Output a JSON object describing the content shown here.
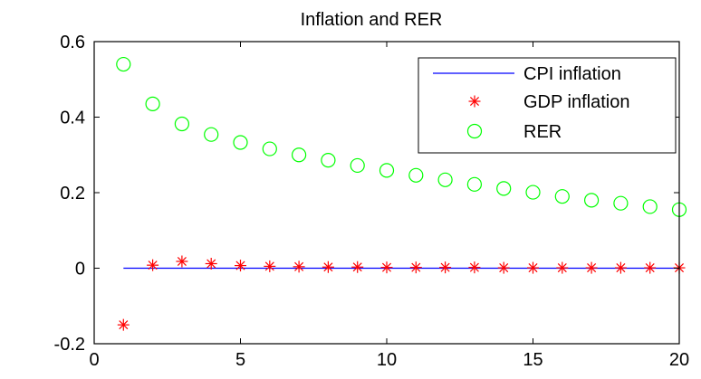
{
  "chart_data": {
    "type": "line",
    "title": "Inflation and RER",
    "xlabel": "",
    "ylabel": "",
    "xlim": [
      0,
      20
    ],
    "ylim": [
      -0.2,
      0.6
    ],
    "xticks": [
      0,
      5,
      10,
      15,
      20
    ],
    "xtick_labels": [
      "0",
      "5",
      "10",
      "15",
      "20"
    ],
    "yticks": [
      -0.2,
      0,
      0.2,
      0.4,
      0.6
    ],
    "ytick_labels": [
      "-0.2",
      "0",
      "0.2",
      "0.4",
      "0.6"
    ],
    "grid": false,
    "legend_position": "top-right",
    "series": [
      {
        "name": "CPI inflation",
        "style": "line",
        "color": "#0000ff",
        "x": [
          1,
          2,
          3,
          4,
          5,
          6,
          7,
          8,
          9,
          10,
          11,
          12,
          13,
          14,
          15,
          16,
          17,
          18,
          19,
          20
        ],
        "values": [
          0,
          0,
          0,
          0,
          0,
          0,
          0,
          0,
          0,
          0,
          0,
          0,
          0,
          0,
          0,
          0,
          0,
          0,
          0,
          0
        ]
      },
      {
        "name": "GDP inflation",
        "style": "marker-asterisk",
        "color": "#ff0000",
        "x": [
          1,
          2,
          3,
          4,
          5,
          6,
          7,
          8,
          9,
          10,
          11,
          12,
          13,
          14,
          15,
          16,
          17,
          18,
          19,
          20
        ],
        "values": [
          -0.15,
          0.008,
          0.018,
          0.012,
          0.007,
          0.005,
          0.004,
          0.003,
          0.003,
          0.002,
          0.002,
          0.002,
          0.002,
          0.001,
          0.001,
          0.001,
          0.001,
          0.001,
          0.001,
          0.001
        ]
      },
      {
        "name": "RER",
        "style": "marker-circle",
        "color": "#00ff00",
        "x": [
          1,
          2,
          3,
          4,
          5,
          6,
          7,
          8,
          9,
          10,
          11,
          12,
          13,
          14,
          15,
          16,
          17,
          18,
          19,
          20
        ],
        "values": [
          0.54,
          0.435,
          0.382,
          0.354,
          0.333,
          0.316,
          0.3,
          0.286,
          0.272,
          0.259,
          0.246,
          0.234,
          0.222,
          0.211,
          0.201,
          0.19,
          0.18,
          0.172,
          0.163,
          0.155
        ]
      }
    ]
  }
}
